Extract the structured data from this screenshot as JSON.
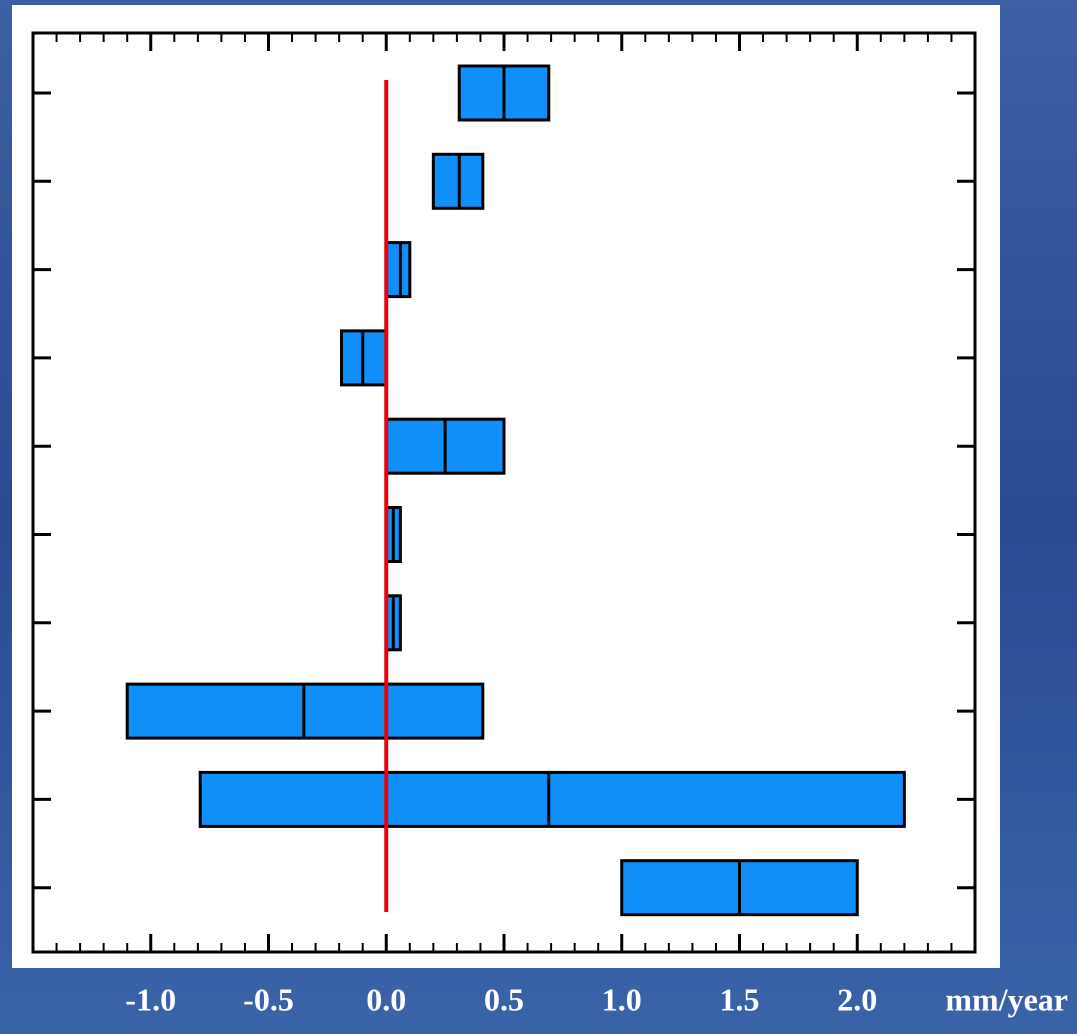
{
  "chart_data": {
    "type": "range_bar",
    "categories": [
      null,
      null,
      null,
      null,
      null,
      null,
      null,
      null,
      null,
      null
    ],
    "low": [
      0.31,
      0.2,
      0.0,
      -0.19,
      0.0,
      0.0,
      0.0,
      -1.1,
      -0.79,
      1.0
    ],
    "values": [
      0.5,
      0.31,
      0.06,
      -0.1,
      0.25,
      0.03,
      0.03,
      -0.35,
      0.69,
      1.5
    ],
    "high": [
      0.69,
      0.41,
      0.1,
      0.0,
      0.5,
      0.06,
      0.06,
      0.41,
      2.2,
      2.0
    ],
    "color": "#0f8ff7",
    "reference_x": 0,
    "reference_color": "#e8000b",
    "xlim": [
      -1.5,
      2.5
    ],
    "xticks": [
      {
        "value": -1.0,
        "label": "-1.0"
      },
      {
        "value": -0.5,
        "label": "-0.5"
      },
      {
        "value": 0.0,
        "label": "0.0"
      },
      {
        "value": 0.5,
        "label": "0.5"
      },
      {
        "value": 1.0,
        "label": "1.0"
      },
      {
        "value": 1.5,
        "label": "1.5"
      },
      {
        "value": 2.0,
        "label": "2.0"
      }
    ],
    "xminor": 0.1,
    "xlabel": "mm/year"
  }
}
